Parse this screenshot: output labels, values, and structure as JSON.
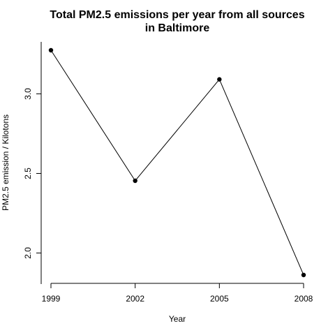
{
  "chart_data": {
    "type": "line",
    "title_lines": [
      "Total PM2.5 emissions per year from all sources",
      "in Baltimore"
    ],
    "xlabel": "Year",
    "ylabel": "PM2.5 emission / Kilotons",
    "x": [
      1999,
      2002,
      2005,
      2008
    ],
    "x_tick_labels": [
      "1999",
      "2002",
      "2005",
      "2008"
    ],
    "values": [
      3.274,
      2.454,
      3.091,
      1.862
    ],
    "y_ticks": [
      2.0,
      2.5,
      3.0
    ],
    "y_tick_labels": [
      "2.0",
      "2.5",
      "3.0"
    ],
    "xlim": [
      1999,
      2008
    ],
    "ylim": [
      1.862,
      3.274
    ],
    "grid": false,
    "marker": "filled-circle"
  }
}
